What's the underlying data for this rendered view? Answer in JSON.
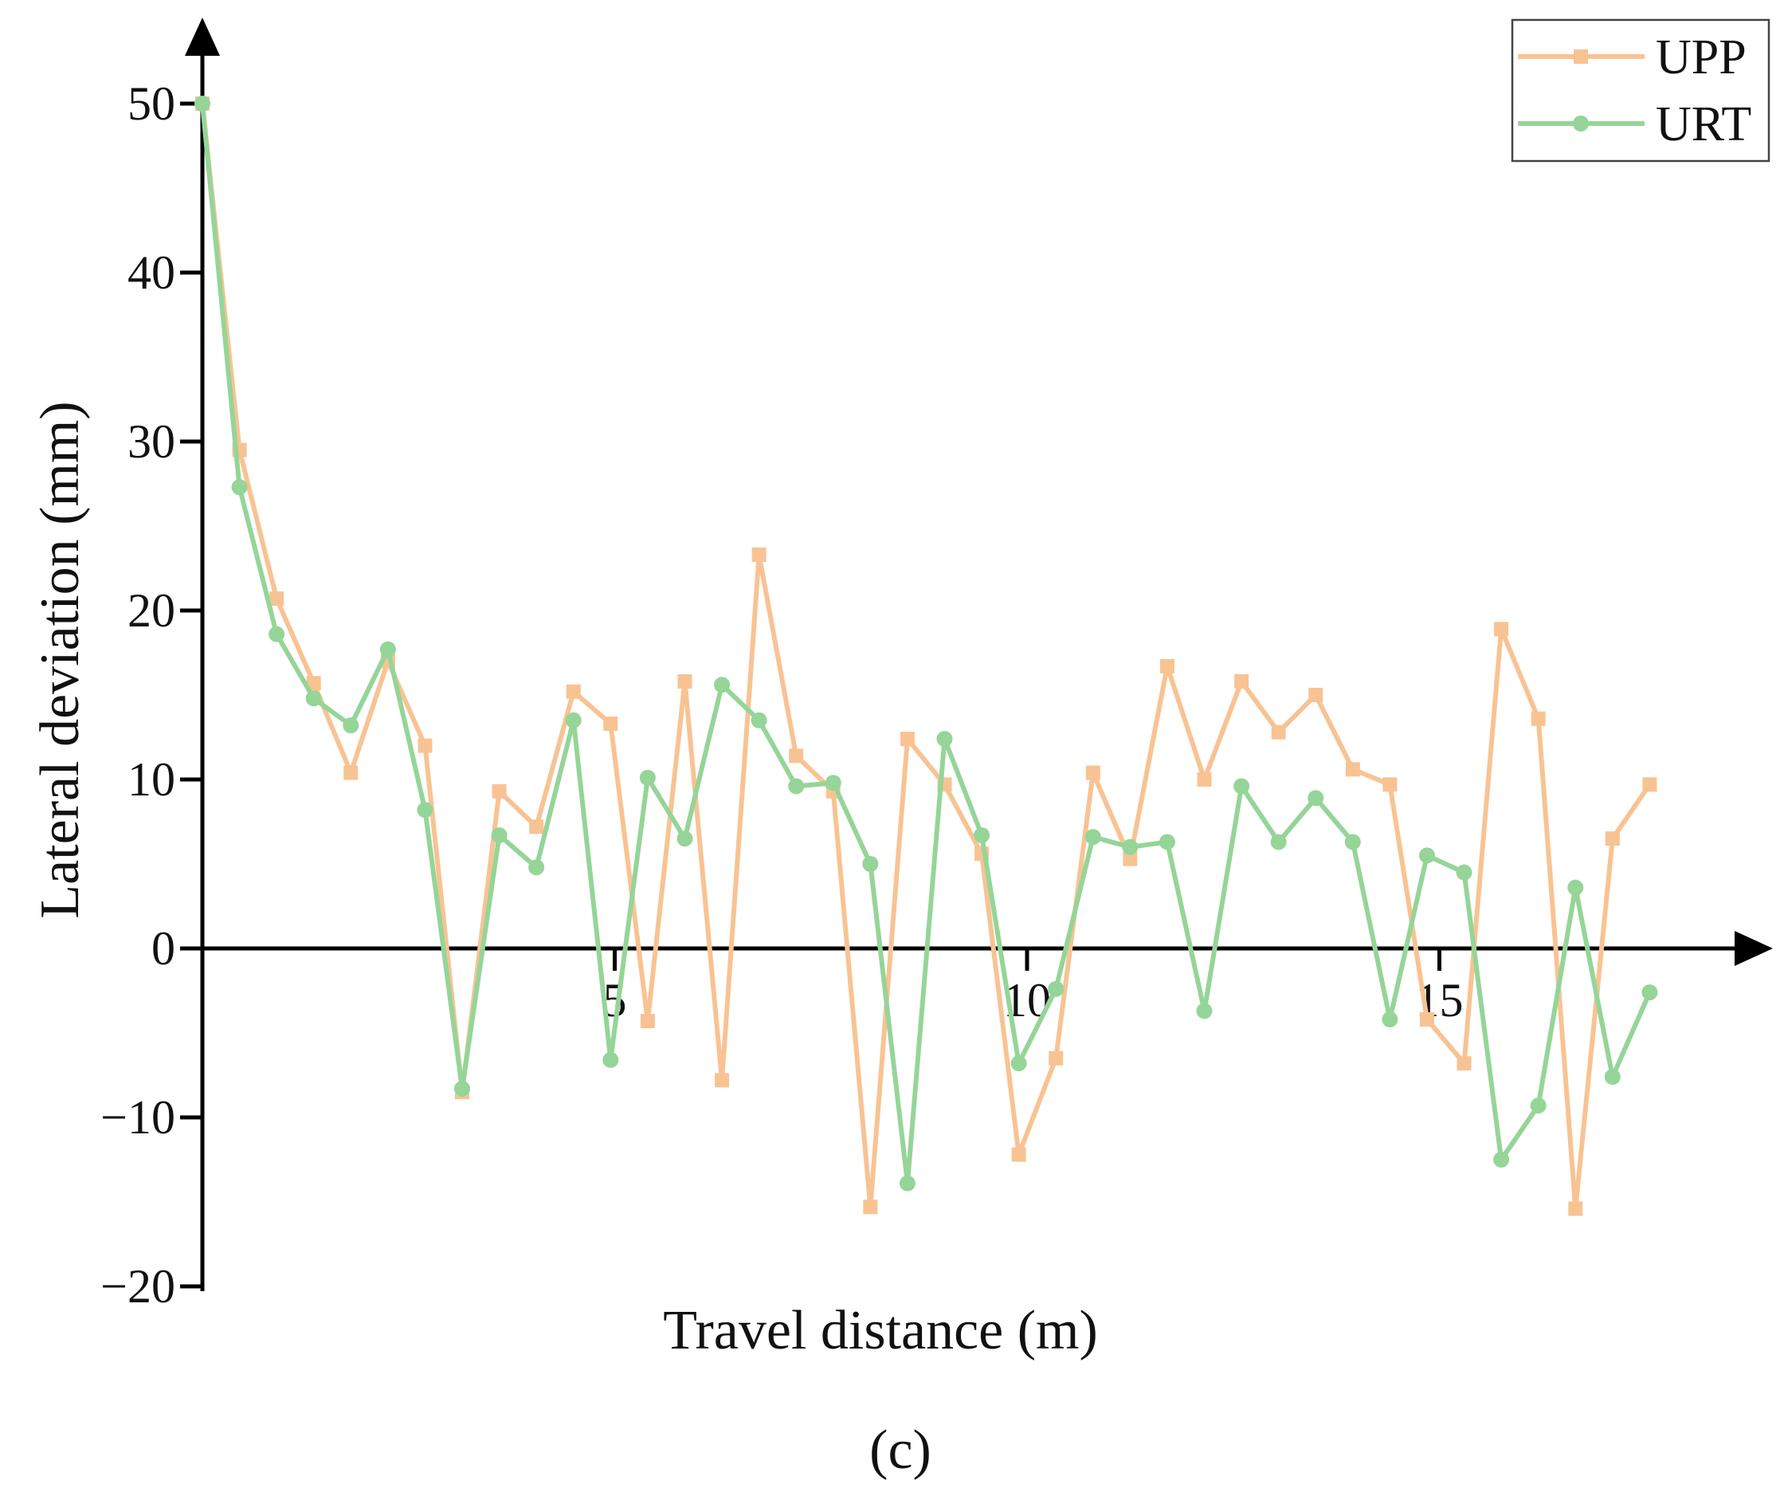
{
  "chart_data": {
    "type": "line",
    "title": "",
    "xlabel": "Travel distance (m)",
    "ylabel": "Lateral deviation (mm)",
    "panel_label": "(c)",
    "xlim": [
      0,
      17.6
    ],
    "ylim": [
      -20,
      50
    ],
    "x_ticks": [
      5,
      10,
      15
    ],
    "x_tick_labels": [
      "5",
      "10",
      "15"
    ],
    "y_ticks": [
      -20,
      -10,
      0,
      10,
      20,
      30,
      40,
      50
    ],
    "y_tick_labels": [
      "−20",
      "−10",
      "0",
      "10",
      "20",
      "30",
      "40",
      "50"
    ],
    "grid": false,
    "legend_position": "top-right",
    "x": [
      0,
      0.45,
      0.9,
      1.35,
      1.8,
      2.25,
      2.7,
      3.15,
      3.6,
      4.05,
      4.5,
      4.95,
      5.4,
      5.85,
      6.3,
      6.75,
      7.2,
      7.65,
      8.1,
      8.55,
      9.0,
      9.45,
      9.9,
      10.35,
      10.8,
      11.25,
      11.7,
      12.15,
      12.6,
      13.05,
      13.5,
      13.95,
      14.4,
      14.85,
      15.3,
      15.75,
      16.2,
      16.65,
      17.1,
      17.55
    ],
    "series": [
      {
        "name": "UPP",
        "color": "#f8c393",
        "marker": "square",
        "values": [
          50,
          29.5,
          20.7,
          15.7,
          10.4,
          17.0,
          12.0,
          -8.5,
          9.3,
          7.2,
          15.2,
          13.3,
          -4.3,
          15.8,
          -7.8,
          23.3,
          11.4,
          9.3,
          -15.3,
          12.4,
          9.7,
          5.6,
          -12.2,
          -6.5,
          10.4,
          5.3,
          16.7,
          10.0,
          15.8,
          12.8,
          15.0,
          10.6,
          9.7,
          -4.2,
          -6.8,
          18.9,
          13.6,
          -15.4,
          6.5,
          9.7
        ]
      },
      {
        "name": "URT",
        "color": "#95d598",
        "marker": "circle",
        "values": [
          50,
          27.3,
          18.6,
          14.8,
          13.2,
          17.7,
          8.2,
          -8.3,
          6.7,
          4.8,
          13.5,
          -6.6,
          10.1,
          6.5,
          15.6,
          13.5,
          9.6,
          9.8,
          5.0,
          -13.9,
          12.4,
          6.7,
          -6.8,
          -2.4,
          6.6,
          6.0,
          6.3,
          -3.7,
          9.6,
          6.3,
          8.9,
          6.3,
          -4.2,
          5.5,
          4.5,
          -12.5,
          -9.3,
          3.6,
          -7.6,
          -2.6
        ]
      }
    ]
  }
}
